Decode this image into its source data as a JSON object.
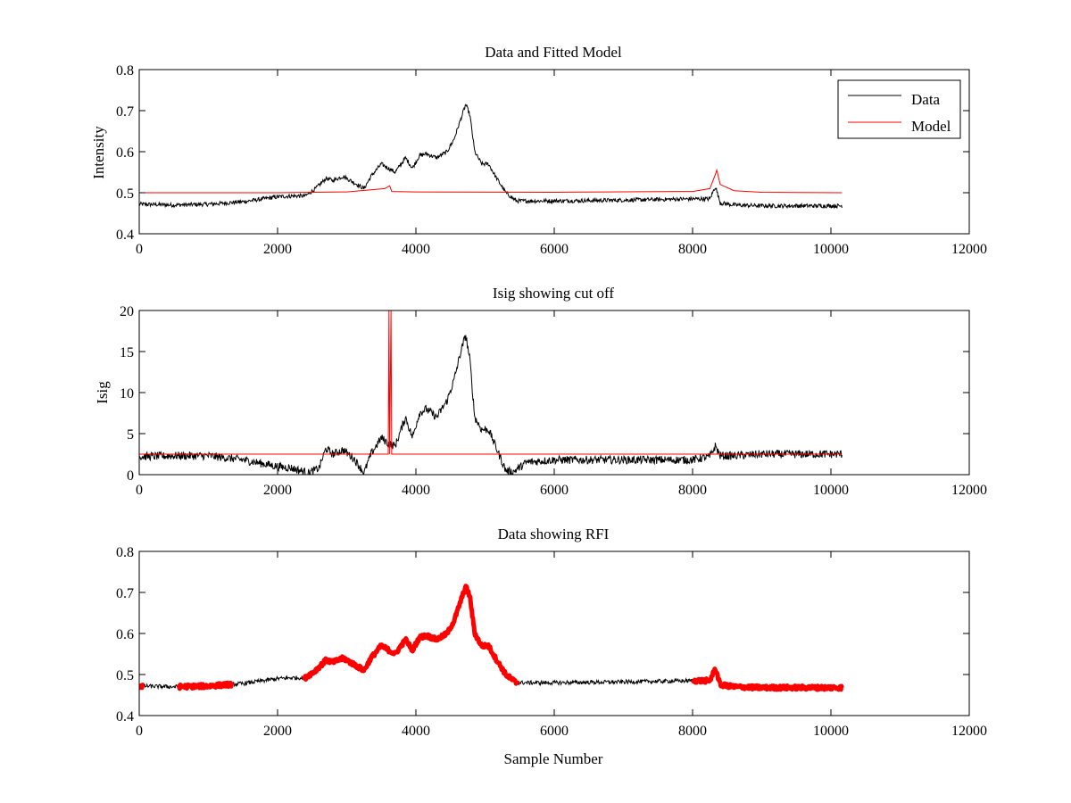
{
  "chart_data": [
    {
      "type": "line",
      "title": "Data and Fitted Model",
      "xlabel": "",
      "ylabel": "Intensity",
      "xlim": [
        0,
        12000
      ],
      "ylim": [
        0.4,
        0.8
      ],
      "xticks": [
        0,
        2000,
        4000,
        6000,
        8000,
        10000,
        12000
      ],
      "yticks": [
        0.4,
        0.5,
        0.6,
        0.7,
        0.8
      ],
      "xtick_labels": [
        "0",
        "2000",
        "4000",
        "6000",
        "8000",
        "10000",
        "12000"
      ],
      "ytick_labels": [
        "0.4",
        "0.5",
        "0.6",
        "0.7",
        "0.8"
      ],
      "legend": {
        "position": "top-right",
        "entries": [
          {
            "name": "Data",
            "color": "#000000"
          },
          {
            "name": "Model",
            "color": "#ff0000"
          }
        ]
      },
      "series": [
        {
          "name": "Data",
          "color": "#000000",
          "noise": 0.005,
          "x": [
            0,
            500,
            1000,
            1500,
            2000,
            2200,
            2400,
            2550,
            2700,
            2800,
            2950,
            3100,
            3250,
            3350,
            3500,
            3600,
            3700,
            3850,
            3950,
            4050,
            4150,
            4300,
            4450,
            4550,
            4650,
            4720,
            4780,
            4850,
            4950,
            5050,
            5150,
            5300,
            5450,
            6000,
            7000,
            8000,
            8250,
            8330,
            8400,
            8600,
            9000,
            10160
          ],
          "y": [
            0.472,
            0.47,
            0.472,
            0.478,
            0.49,
            0.492,
            0.492,
            0.51,
            0.535,
            0.53,
            0.54,
            0.525,
            0.51,
            0.54,
            0.57,
            0.56,
            0.55,
            0.585,
            0.56,
            0.59,
            0.595,
            0.585,
            0.6,
            0.63,
            0.68,
            0.715,
            0.69,
            0.6,
            0.57,
            0.57,
            0.54,
            0.5,
            0.48,
            0.48,
            0.482,
            0.485,
            0.485,
            0.515,
            0.475,
            0.47,
            0.468,
            0.468
          ]
        },
        {
          "name": "Model",
          "color": "#ff0000",
          "noise": 0.0,
          "x": [
            0,
            2000,
            3000,
            3550,
            3620,
            3650,
            4000,
            6000,
            8000,
            8250,
            8330,
            8350,
            8400,
            8600,
            9000,
            10160
          ],
          "y": [
            0.5,
            0.5,
            0.502,
            0.51,
            0.517,
            0.503,
            0.502,
            0.501,
            0.503,
            0.51,
            0.545,
            0.555,
            0.52,
            0.505,
            0.501,
            0.5
          ]
        }
      ]
    },
    {
      "type": "line",
      "title": "Isig showing cut off",
      "xlabel": "",
      "ylabel": "Isig",
      "xlim": [
        0,
        12000
      ],
      "ylim": [
        0,
        20
      ],
      "xticks": [
        0,
        2000,
        4000,
        6000,
        8000,
        10000,
        12000
      ],
      "yticks": [
        0,
        5,
        10,
        15,
        20
      ],
      "xtick_labels": [
        "0",
        "2000",
        "4000",
        "6000",
        "8000",
        "10000",
        "12000"
      ],
      "ytick_labels": [
        "0",
        "5",
        "10",
        "15",
        "20"
      ],
      "series": [
        {
          "color": "#000000",
          "noise": 0.5,
          "x": [
            0,
            500,
            1000,
            1500,
            2000,
            2200,
            2450,
            2600,
            2700,
            2800,
            2950,
            3100,
            3250,
            3350,
            3500,
            3600,
            3700,
            3850,
            3950,
            4050,
            4150,
            4300,
            4450,
            4550,
            4650,
            4720,
            4780,
            4850,
            4950,
            5050,
            5150,
            5300,
            5400,
            5600,
            6000,
            7000,
            8000,
            8250,
            8330,
            8400,
            8600,
            9000,
            10160
          ],
          "y": [
            2.2,
            2.3,
            2.3,
            1.8,
            1.0,
            0.8,
            0.2,
            0.8,
            3.2,
            2.5,
            3.0,
            2.0,
            0.2,
            2.5,
            4.5,
            3.8,
            3.5,
            7.0,
            4.5,
            7.5,
            8.0,
            7.0,
            9.0,
            11.5,
            15.0,
            17.0,
            14.0,
            7.0,
            5.5,
            5.5,
            3.5,
            0.5,
            0.3,
            1.5,
            1.8,
            1.8,
            1.8,
            2.2,
            3.5,
            2.3,
            2.3,
            2.5,
            2.5
          ]
        },
        {
          "color": "#ff0000",
          "noise": 0.0,
          "x": [
            0,
            3600,
            3610,
            3620,
            3640,
            3650,
            10160
          ],
          "y": [
            2.5,
            2.5,
            20,
            2.5,
            20,
            2.5,
            2.5
          ]
        }
      ]
    },
    {
      "type": "line",
      "title": "Data showing RFI",
      "xlabel": "Sample Number",
      "ylabel": "",
      "xlim": [
        0,
        12000
      ],
      "ylim": [
        0.4,
        0.8
      ],
      "xticks": [
        0,
        2000,
        4000,
        6000,
        8000,
        10000,
        12000
      ],
      "yticks": [
        0.4,
        0.5,
        0.6,
        0.7,
        0.8
      ],
      "xtick_labels": [
        "0",
        "2000",
        "4000",
        "6000",
        "8000",
        "10000",
        "12000"
      ],
      "ytick_labels": [
        "0.4",
        "0.5",
        "0.6",
        "0.7",
        "0.8"
      ],
      "series": [
        {
          "color": "#000000",
          "noise": 0.005,
          "x": [
            0,
            500,
            1000,
            1500,
            2000,
            2200,
            2400,
            2550,
            2700,
            2800,
            2950,
            3100,
            3250,
            3350,
            3500,
            3600,
            3700,
            3850,
            3950,
            4050,
            4150,
            4300,
            4450,
            4550,
            4650,
            4720,
            4780,
            4850,
            4950,
            5050,
            5150,
            5300,
            5450,
            6000,
            7000,
            8000,
            8250,
            8330,
            8400,
            8600,
            9000,
            10160
          ],
          "y": [
            0.472,
            0.47,
            0.472,
            0.478,
            0.49,
            0.492,
            0.492,
            0.51,
            0.535,
            0.53,
            0.54,
            0.525,
            0.51,
            0.54,
            0.57,
            0.56,
            0.55,
            0.585,
            0.56,
            0.59,
            0.595,
            0.585,
            0.6,
            0.63,
            0.68,
            0.715,
            0.69,
            0.6,
            0.57,
            0.57,
            0.54,
            0.5,
            0.48,
            0.48,
            0.482,
            0.485,
            0.485,
            0.515,
            0.475,
            0.47,
            0.468,
            0.468
          ]
        }
      ],
      "highlight_ranges": {
        "color": "#ff0000",
        "ranges": [
          [
            0,
            60
          ],
          [
            560,
            1350
          ],
          [
            2380,
            5480
          ],
          [
            8000,
            10160
          ]
        ]
      }
    }
  ]
}
